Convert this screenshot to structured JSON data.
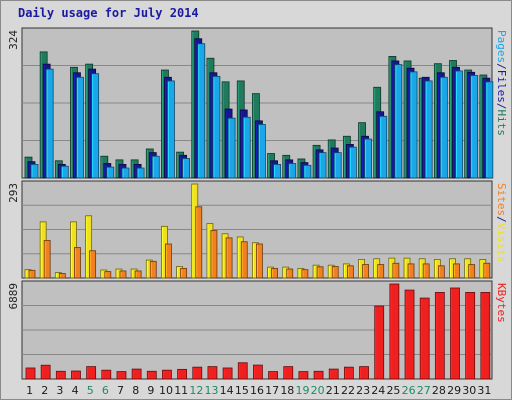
{
  "title": "Daily usage for July 2014",
  "colors": {
    "hits": "#1f7a5e",
    "files": "#1aa6e8",
    "pages": "#1f7a5e",
    "visits": "#f0e020",
    "sites": "#f08020",
    "kbytes": "#ee2020",
    "background": "#c0c0c0"
  },
  "chart_data": [
    {
      "type": "bar",
      "panel": "hits-files-pages",
      "ylabel_max": "324",
      "ymax": 324,
      "legend": [
        {
          "label": "Pages",
          "color": "#1aa6e8"
        },
        {
          "label": "/",
          "color": "#222288"
        },
        {
          "label": "Files",
          "color": "#1a1aa0"
        },
        {
          "label": "/",
          "color": "#222288"
        },
        {
          "label": "Hits",
          "color": "#1f7a5e"
        }
      ],
      "categories": [
        "1",
        "2",
        "3",
        "4",
        "5",
        "6",
        "7",
        "8",
        "9",
        "10",
        "11",
        "12",
        "13",
        "14",
        "15",
        "16",
        "17",
        "18",
        "19",
        "20",
        "21",
        "22",
        "23",
        "24",
        "25",
        "26",
        "27",
        "28",
        "29",
        "30",
        "31"
      ],
      "series": [
        {
          "name": "Hits",
          "values": [
            46,
            278,
            38,
            244,
            251,
            48,
            40,
            40,
            64,
            238,
            57,
            324,
            264,
            212,
            214,
            186,
            54,
            50,
            42,
            72,
            84,
            92,
            122,
            200,
            268,
            258,
            220,
            252,
            259,
            238,
            227
          ]
        },
        {
          "name": "Files",
          "values": [
            36,
            251,
            30,
            232,
            240,
            32,
            30,
            30,
            56,
            222,
            50,
            307,
            232,
            152,
            150,
            126,
            38,
            40,
            34,
            62,
            66,
            74,
            92,
            146,
            258,
            242,
            222,
            232,
            244,
            233,
            220
          ]
        },
        {
          "name": "Pages",
          "values": [
            30,
            240,
            26,
            222,
            230,
            24,
            22,
            22,
            48,
            214,
            43,
            296,
            224,
            132,
            134,
            118,
            30,
            32,
            28,
            56,
            56,
            68,
            86,
            136,
            250,
            234,
            214,
            222,
            236,
            226,
            212
          ]
        }
      ]
    },
    {
      "type": "bar",
      "panel": "visits-sites",
      "ylabel_max": "293",
      "ymax": 293,
      "legend": [
        {
          "label": "Sites",
          "color": "#f08020"
        },
        {
          "label": "/",
          "color": "#222288"
        },
        {
          "label": "Visits",
          "color": "#f0e020"
        }
      ],
      "categories": [
        "1",
        "2",
        "3",
        "4",
        "5",
        "6",
        "7",
        "8",
        "9",
        "10",
        "11",
        "12",
        "13",
        "14",
        "15",
        "16",
        "17",
        "18",
        "19",
        "20",
        "21",
        "22",
        "23",
        "24",
        "25",
        "26",
        "27",
        "28",
        "29",
        "30",
        "31"
      ],
      "series": [
        {
          "name": "Visits",
          "values": [
            26,
            175,
            17,
            175,
            194,
            25,
            28,
            28,
            56,
            161,
            36,
            293,
            170,
            138,
            128,
            110,
            34,
            34,
            30,
            40,
            40,
            44,
            58,
            60,
            62,
            62,
            60,
            58,
            60,
            60,
            58
          ]
        },
        {
          "name": "Sites",
          "values": [
            24,
            117,
            14,
            95,
            85,
            20,
            22,
            22,
            52,
            106,
            30,
            222,
            148,
            125,
            113,
            106,
            30,
            28,
            26,
            35,
            36,
            38,
            42,
            42,
            46,
            44,
            44,
            38,
            44,
            42,
            46
          ]
        }
      ]
    },
    {
      "type": "bar",
      "panel": "kbytes",
      "ylabel_max": "6889",
      "ymax": 6889,
      "legend": [
        {
          "label": "KBytes",
          "color": "#ee2020"
        }
      ],
      "categories": [
        "1",
        "2",
        "3",
        "4",
        "5",
        "6",
        "7",
        "8",
        "9",
        "10",
        "11",
        "12",
        "13",
        "14",
        "15",
        "16",
        "17",
        "18",
        "19",
        "20",
        "21",
        "22",
        "23",
        "24",
        "25",
        "26",
        "27",
        "28",
        "29",
        "30",
        "31"
      ],
      "series": [
        {
          "name": "KBytes",
          "values": [
            800,
            1000,
            560,
            580,
            900,
            640,
            540,
            720,
            560,
            640,
            700,
            860,
            900,
            800,
            1180,
            1010,
            540,
            900,
            540,
            560,
            720,
            860,
            900,
            5290,
            6889,
            6450,
            5870,
            6280,
            6600,
            6280,
            6280
          ]
        }
      ]
    }
  ],
  "x_axis": {
    "labels": [
      "1",
      "2",
      "3",
      "4",
      "5",
      "6",
      "7",
      "8",
      "9",
      "10",
      "11",
      "12",
      "13",
      "14",
      "15",
      "16",
      "17",
      "18",
      "19",
      "20",
      "21",
      "22",
      "23",
      "24",
      "25",
      "26",
      "27",
      "28",
      "29",
      "30",
      "31"
    ],
    "weekend_days": [
      "5",
      "6",
      "12",
      "13",
      "19",
      "20",
      "26",
      "27"
    ],
    "weekday_color": "#1a1a1a",
    "weekend_color": "#1f8a6a"
  }
}
